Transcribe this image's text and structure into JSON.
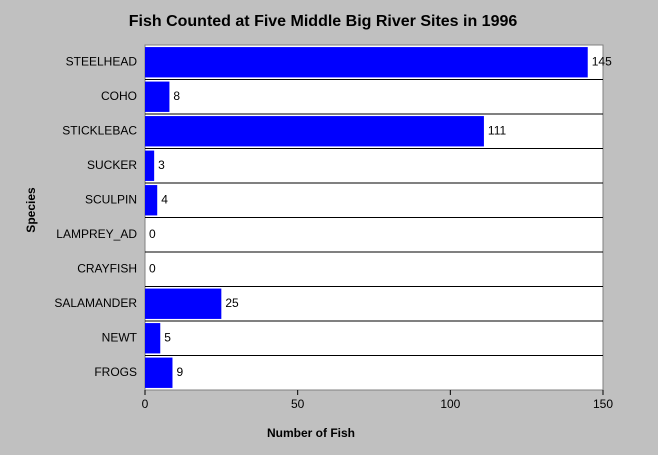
{
  "chart_data": {
    "type": "bar",
    "orientation": "horizontal",
    "title": "Fish Counted at Five Middle Big River Sites in 1996",
    "x_label": "Number of Fish",
    "y_label": "Species",
    "categories": [
      "STEELHEAD",
      "COHO",
      "STICKLEBAC",
      "SUCKER",
      "SCULPIN",
      "LAMPREY_AD",
      "CRAYFISH",
      "SALAMANDER",
      "NEWT",
      "FROGS"
    ],
    "values": [
      145,
      8,
      111,
      3,
      4,
      0,
      0,
      25,
      5,
      9
    ],
    "color": "#0000ff",
    "xlim": [
      0,
      150
    ],
    "xticks": [
      0,
      50,
      100,
      150
    ]
  }
}
